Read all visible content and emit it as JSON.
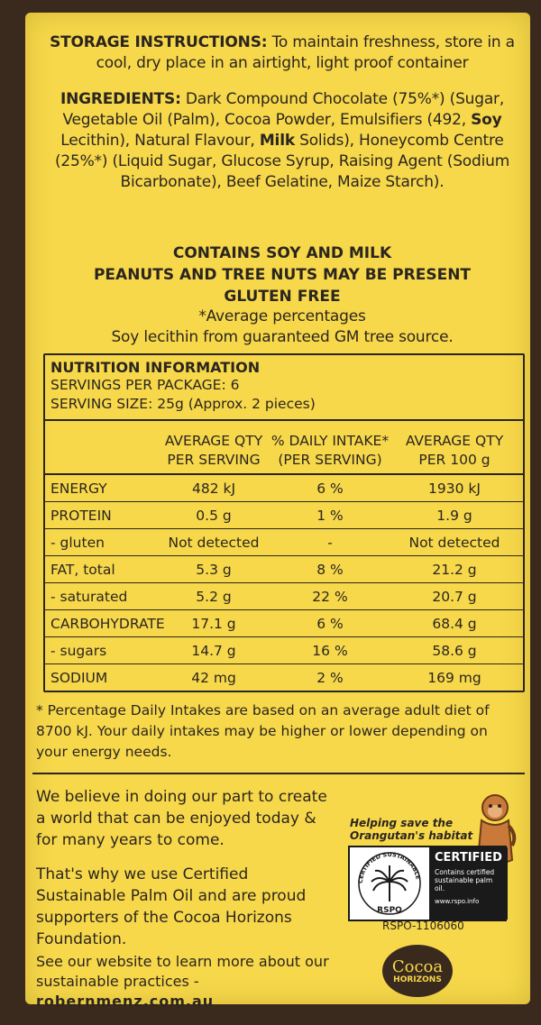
{
  "storage": {
    "heading": "STORAGE INSTRUCTIONS:",
    "text": "To maintain freshness, store in a cool, dry place in an airtight, light proof container"
  },
  "ingredients": {
    "heading": "INGREDIENTS:",
    "t1": "Dark Compound Chocolate (75%*) (Sugar, Vegetable Oil (Palm), Cocoa Powder, Emulsifiers (492, ",
    "soy": "Soy",
    "t2": " Lecithin), Natural Flavour, ",
    "milk": "Milk",
    "t3": " Solids), Honeycomb Centre (25%*) (Liquid Sugar, Glucose Syrup, Raising Agent (Sodium Bicarbonate), Beef Gelatine, Maize Starch)."
  },
  "warnings": [
    "CONTAINS SOY AND MILK",
    "PEANUTS AND TREE NUTS MAY BE PRESENT",
    "GLUTEN FREE"
  ],
  "notes": [
    "*Average percentages",
    "Soy lecithin from guaranteed GM tree source."
  ],
  "nutrition": {
    "title": "NUTRITION INFORMATION",
    "servings": "SERVINGS PER PACKAGE: 6",
    "serving_size": "SERVING SIZE: 25g (Approx. 2 pieces)",
    "headers": [
      "",
      "AVERAGE QTY PER SERVING",
      "% DAILY INTAKE* (PER SERVING)",
      "AVERAGE QTY PER 100 g"
    ],
    "rows": [
      [
        "ENERGY",
        "482 kJ",
        "6 %",
        "1930 kJ"
      ],
      [
        "PROTEIN",
        "0.5 g",
        "1 %",
        "1.9 g"
      ],
      [
        "- gluten",
        "Not detected",
        "-",
        "Not detected"
      ],
      [
        "FAT, total",
        "5.3 g",
        "8 %",
        "21.2 g"
      ],
      [
        "- saturated",
        "5.2 g",
        "22 %",
        "20.7 g"
      ],
      [
        "CARBOHYDRATE",
        "17.1 g",
        "6 %",
        "68.4 g"
      ],
      [
        "- sugars",
        "14.7 g",
        "16 %",
        "58.6 g"
      ],
      [
        "SODIUM",
        "42 mg",
        "2 %",
        "169 mg"
      ]
    ]
  },
  "footnote": "* Percentage Daily Intakes are based on an average adult diet of 8700 kJ. Your daily intakes may be higher or lower depending on your energy needs.",
  "belief": [
    "We believe in doing our part to create a world that can be enjoyed today & for many years to come.",
    "That's why we use Certified Sustainable Palm Oil and are proud supporters of the Cocoa Horizons Foundation.",
    "See our website to learn more about our sustainable practices -"
  ],
  "website": "robernmenz.com.au",
  "rspo": {
    "helping": [
      "Helping save the",
      "Orangutan's habitat"
    ],
    "certified": "CERTIFIED",
    "contains": "Contains certified sustainable palm oil.",
    "url": "www.rspo.info",
    "ring_text": "CERTIFIED SUSTAINABLE PALM OIL",
    "logo_word": "RSPO",
    "code": "RSPO-1106060"
  },
  "cocoa_horizons": {
    "word": "Cocoa",
    "sub": "HORIZONS"
  },
  "colors": {
    "pack_yellow": "#f7d84a",
    "ink": "#2b2520",
    "chocolate": "#3a2a1e"
  }
}
